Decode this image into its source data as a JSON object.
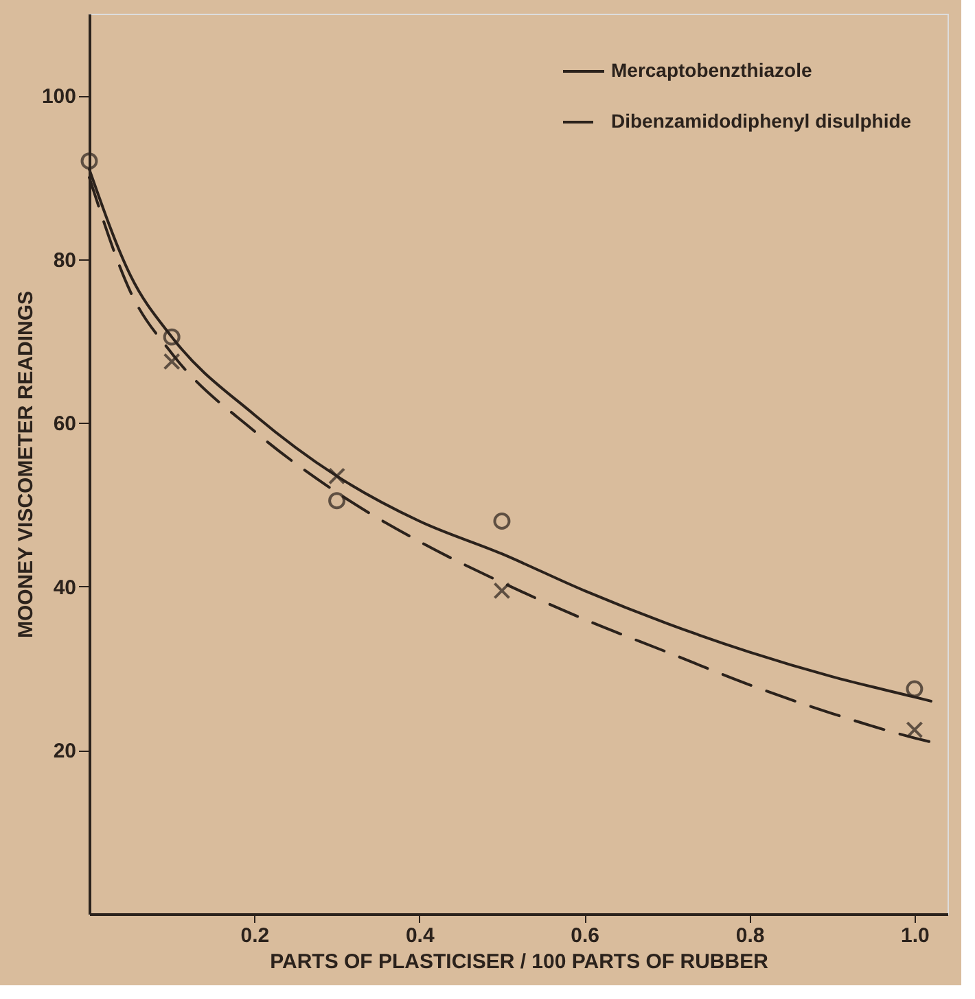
{
  "chart_data": {
    "type": "line",
    "xlabel": "PARTS OF PLASTICISER / 100 PARTS OF RUBBER",
    "ylabel": "MOONEY VISCOMETER READINGS",
    "xlim": [
      0,
      1.04
    ],
    "ylim": [
      0,
      110
    ],
    "xticks": [
      0.2,
      0.4,
      0.6,
      0.8,
      {
        "value": 1.0,
        "label": "1.0"
      }
    ],
    "yticks": [
      20,
      40,
      60,
      80,
      100
    ],
    "grid": false,
    "legend": "top right",
    "series": [
      {
        "name": "Mercaptobenzthiazole",
        "line_style": "solid",
        "color": "#2b221c",
        "x": [
          0,
          0.05,
          0.1,
          0.2,
          0.3,
          0.4,
          0.5,
          0.6,
          0.7,
          0.8,
          0.9,
          1.0,
          1.02
        ],
        "values": [
          91,
          78,
          70.5,
          61,
          53.5,
          48,
          44,
          39.5,
          35.5,
          32,
          29,
          26.5,
          26
        ]
      },
      {
        "name": "Dibenzamidodiphenyl disulphide",
        "line_style": "dashed",
        "color": "#2b221c",
        "x": [
          0,
          0.05,
          0.1,
          0.2,
          0.3,
          0.4,
          0.5,
          0.6,
          0.7,
          0.8,
          0.9,
          1.0,
          1.02
        ],
        "values": [
          90,
          76,
          68.5,
          59,
          51.5,
          45.5,
          40.5,
          36,
          32,
          28,
          24.5,
          21.5,
          21
        ]
      },
      {
        "type": "scatter",
        "marker": "circle",
        "color": "#2b221c",
        "x": [
          0,
          0.1,
          0.3,
          0.5,
          1.0
        ],
        "values": [
          92,
          70.5,
          50.5,
          48,
          27.5
        ]
      },
      {
        "type": "scatter",
        "marker": "cross",
        "color": "#2b221c",
        "x": [
          0.1,
          0.3,
          0.5,
          1.0
        ],
        "values": [
          67.5,
          53.5,
          39.5,
          22.5
        ]
      }
    ]
  }
}
